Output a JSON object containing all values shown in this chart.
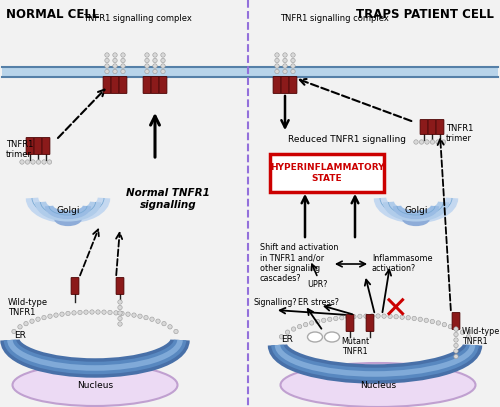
{
  "bg_color": "#f0f0f0",
  "receptor_color": "#8b1a1a",
  "receptor_edge": "#4a0000",
  "bead_color": "#d8d8d8",
  "bead_border": "#999999",
  "divider_color": "#9370db",
  "golgi_colors": [
    "#c8daf0",
    "#b0c8e8",
    "#98b8de"
  ],
  "er_colors": [
    "#4a80b8",
    "#6a9fd0",
    "#9abce8"
  ],
  "membrane_fill": "#c0d8ee",
  "membrane_line": "#5b8db8",
  "nucleus_fill": "#ecdaf4",
  "nucleus_edge": "#c0a0d0",
  "hyperinflam_edge": "#cc0000",
  "hyperinflam_text": "#cc0000",
  "cross_color": "#cc0000",
  "title_left": "NORMAL CELL",
  "title_right": "TRAPS PATIENT CELL",
  "label_sig_complex_left": "TNFR1 signalling complex",
  "label_sig_complex_right": "TNFR1 signalling complex",
  "label_golgi_left": "Golgi",
  "label_golgi_right": "Golgi",
  "label_er_left": "ER",
  "label_er_right": "ER",
  "label_nucleus_left": "Nucleus",
  "label_nucleus_right": "Nucleus",
  "label_trimer_left": "TNFR1\ntrimer",
  "label_trimer_right": "TNFR1\ntrimer",
  "label_wildtype_left": "Wild-type\nTNFR1",
  "label_wildtype_right": "Wild-type\nTNFR1",
  "label_mutant": "Mutant\nTNFR1",
  "label_normal_sig": "Normal TNFR1\nsignalling",
  "label_reduced": "Reduced TNFR1 signalling",
  "label_hyperinflam": "HYPERINFLAMMATORY\nSTATE",
  "label_shift": "Shift and activation\nin TNFR1 and/or\nother signaling\ncascades?",
  "label_inflammasome": "Inflammasome\nactivation?",
  "label_upr": "UPR?",
  "label_signalling_q": "Signalling?",
  "label_er_stress": "ER stress?"
}
